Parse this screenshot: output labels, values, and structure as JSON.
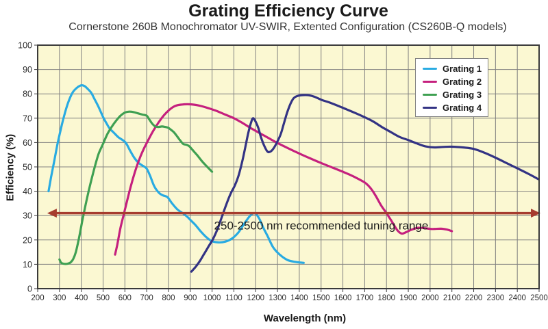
{
  "header": {
    "title": "Grating Efficiency Curve",
    "subtitle": "Cornerstone 260B Monochromator UV-SWIR, Extented Configuration (CS260B-Q models)"
  },
  "chart_data": {
    "type": "line",
    "title": "Grating Efficiency Curve",
    "subtitle": "Cornerstone 260B Monochromator UV-SWIR, Extented Configuration (CS260B-Q models)",
    "xlabel": "Wavelength (nm)",
    "ylabel": "Efficiency (%)",
    "xlim": [
      200,
      2500
    ],
    "ylim": [
      0,
      100
    ],
    "x_ticks": [
      200,
      300,
      400,
      500,
      600,
      700,
      800,
      900,
      1000,
      1100,
      1200,
      1300,
      1400,
      1500,
      1600,
      1700,
      1800,
      1900,
      2000,
      2100,
      2200,
      2300,
      2400,
      2500
    ],
    "y_ticks": [
      0,
      10,
      20,
      30,
      40,
      50,
      60,
      70,
      80,
      90,
      100
    ],
    "grid": true,
    "legend_position": "top-right",
    "colors": {
      "plot_bg": "#FBF8D2",
      "grid": "#808080",
      "border": "#3A3A3A",
      "tick_text": "#2B2B2B",
      "annotation_arrow": "#A63C2E",
      "annotation_text": "#1A1A1A"
    },
    "series": [
      {
        "name": "Grating 1",
        "color": "#29ABE2",
        "points": [
          [
            250,
            40
          ],
          [
            262,
            46
          ],
          [
            275,
            52
          ],
          [
            290,
            59
          ],
          [
            305,
            65
          ],
          [
            320,
            70.5
          ],
          [
            340,
            76.5
          ],
          [
            360,
            80.5
          ],
          [
            380,
            82.5
          ],
          [
            400,
            83.5
          ],
          [
            415,
            83.2
          ],
          [
            430,
            82
          ],
          [
            445,
            80.5
          ],
          [
            460,
            78
          ],
          [
            480,
            74.5
          ],
          [
            500,
            70.5
          ],
          [
            515,
            68
          ],
          [
            530,
            65.8
          ],
          [
            550,
            64
          ],
          [
            570,
            62.2
          ],
          [
            590,
            61
          ],
          [
            605,
            59.8
          ],
          [
            625,
            56.5
          ],
          [
            645,
            53.5
          ],
          [
            665,
            51.5
          ],
          [
            685,
            50.3
          ],
          [
            700,
            49.3
          ],
          [
            715,
            46.5
          ],
          [
            735,
            42
          ],
          [
            757,
            39.3
          ],
          [
            775,
            38.3
          ],
          [
            795,
            37.6
          ],
          [
            815,
            35.2
          ],
          [
            840,
            32.6
          ],
          [
            865,
            31
          ],
          [
            885,
            29.6
          ],
          [
            905,
            27.8
          ],
          [
            925,
            26
          ],
          [
            950,
            23.3
          ],
          [
            975,
            21
          ],
          [
            1000,
            19.5
          ],
          [
            1030,
            19
          ],
          [
            1060,
            19.3
          ],
          [
            1090,
            20.5
          ],
          [
            1120,
            23
          ],
          [
            1150,
            27
          ],
          [
            1175,
            30
          ],
          [
            1195,
            31
          ],
          [
            1215,
            29
          ],
          [
            1235,
            25
          ],
          [
            1255,
            21.5
          ],
          [
            1280,
            17
          ],
          [
            1310,
            14
          ],
          [
            1345,
            11.8
          ],
          [
            1380,
            11
          ],
          [
            1420,
            10.6
          ]
        ]
      },
      {
        "name": "Grating 2",
        "color": "#C5207E",
        "points": [
          [
            555,
            14
          ],
          [
            565,
            18
          ],
          [
            580,
            25
          ],
          [
            595,
            30.5
          ],
          [
            610,
            36
          ],
          [
            630,
            43
          ],
          [
            650,
            49
          ],
          [
            670,
            54
          ],
          [
            690,
            58
          ],
          [
            710,
            61.5
          ],
          [
            730,
            64.8
          ],
          [
            755,
            68.3
          ],
          [
            780,
            71.3
          ],
          [
            805,
            73.5
          ],
          [
            830,
            75
          ],
          [
            860,
            75.6
          ],
          [
            900,
            75.7
          ],
          [
            940,
            75.2
          ],
          [
            980,
            74.2
          ],
          [
            1020,
            73
          ],
          [
            1060,
            71.5
          ],
          [
            1100,
            70
          ],
          [
            1140,
            68
          ],
          [
            1180,
            65.8
          ],
          [
            1220,
            63.8
          ],
          [
            1260,
            61.8
          ],
          [
            1300,
            59.8
          ],
          [
            1350,
            57.6
          ],
          [
            1400,
            55.5
          ],
          [
            1450,
            53.5
          ],
          [
            1500,
            51.6
          ],
          [
            1550,
            49.8
          ],
          [
            1600,
            48
          ],
          [
            1650,
            46
          ],
          [
            1700,
            43.6
          ],
          [
            1725,
            41.5
          ],
          [
            1750,
            38.2
          ],
          [
            1775,
            34.2
          ],
          [
            1800,
            31
          ],
          [
            1825,
            27.5
          ],
          [
            1850,
            24
          ],
          [
            1870,
            22.6
          ],
          [
            1890,
            23.2
          ],
          [
            1915,
            24.2
          ],
          [
            1945,
            25
          ],
          [
            1975,
            24.8
          ],
          [
            2010,
            24.5
          ],
          [
            2050,
            24.6
          ],
          [
            2080,
            24.2
          ],
          [
            2100,
            23.6
          ]
        ]
      },
      {
        "name": "Grating 3",
        "color": "#3FA052",
        "points": [
          [
            300,
            12
          ],
          [
            308,
            10.6
          ],
          [
            320,
            10.2
          ],
          [
            335,
            10.2
          ],
          [
            350,
            10.7
          ],
          [
            363,
            12.2
          ],
          [
            375,
            15
          ],
          [
            390,
            21
          ],
          [
            405,
            28
          ],
          [
            420,
            34.5
          ],
          [
            435,
            40.5
          ],
          [
            450,
            46
          ],
          [
            465,
            51
          ],
          [
            480,
            55.5
          ],
          [
            500,
            59.5
          ],
          [
            520,
            63.5
          ],
          [
            540,
            66.5
          ],
          [
            560,
            69
          ],
          [
            580,
            71
          ],
          [
            600,
            72.3
          ],
          [
            620,
            72.7
          ],
          [
            640,
            72.5
          ],
          [
            660,
            72
          ],
          [
            680,
            71.5
          ],
          [
            700,
            71
          ],
          [
            712,
            69.5
          ],
          [
            725,
            67.8
          ],
          [
            740,
            66.6
          ],
          [
            755,
            66.4
          ],
          [
            770,
            66.6
          ],
          [
            785,
            66.4
          ],
          [
            800,
            66
          ],
          [
            812,
            65.2
          ],
          [
            825,
            64.2
          ],
          [
            840,
            62.5
          ],
          [
            855,
            60.7
          ],
          [
            868,
            59.4
          ],
          [
            882,
            59.1
          ],
          [
            895,
            58.5
          ],
          [
            910,
            57
          ],
          [
            930,
            55
          ],
          [
            955,
            52.2
          ],
          [
            978,
            50
          ],
          [
            1000,
            48
          ]
        ]
      },
      {
        "name": "Grating 4",
        "color": "#333384",
        "points": [
          [
            905,
            7
          ],
          [
            925,
            9
          ],
          [
            945,
            11.5
          ],
          [
            965,
            14.5
          ],
          [
            985,
            17.5
          ],
          [
            1005,
            20.5
          ],
          [
            1025,
            24.5
          ],
          [
            1045,
            29.5
          ],
          [
            1065,
            34.5
          ],
          [
            1085,
            39
          ],
          [
            1105,
            42.5
          ],
          [
            1120,
            46
          ],
          [
            1135,
            51
          ],
          [
            1150,
            57
          ],
          [
            1165,
            63.5
          ],
          [
            1178,
            68
          ],
          [
            1188,
            70
          ],
          [
            1200,
            68.5
          ],
          [
            1212,
            66
          ],
          [
            1225,
            62
          ],
          [
            1240,
            58.5
          ],
          [
            1255,
            56.2
          ],
          [
            1270,
            56.4
          ],
          [
            1285,
            58
          ],
          [
            1300,
            60.5
          ],
          [
            1315,
            63.5
          ],
          [
            1330,
            68
          ],
          [
            1345,
            72.5
          ],
          [
            1360,
            76
          ],
          [
            1375,
            78.3
          ],
          [
            1395,
            79.2
          ],
          [
            1420,
            79.5
          ],
          [
            1445,
            79.4
          ],
          [
            1470,
            78.8
          ],
          [
            1500,
            77.6
          ],
          [
            1540,
            76.4
          ],
          [
            1580,
            75
          ],
          [
            1620,
            73.5
          ],
          [
            1660,
            72
          ],
          [
            1700,
            70.4
          ],
          [
            1740,
            68.6
          ],
          [
            1780,
            66.3
          ],
          [
            1820,
            64.3
          ],
          [
            1860,
            62.3
          ],
          [
            1900,
            61
          ],
          [
            1940,
            59.6
          ],
          [
            1980,
            58.4
          ],
          [
            2020,
            58
          ],
          [
            2060,
            58.2
          ],
          [
            2100,
            58.3
          ],
          [
            2150,
            58
          ],
          [
            2200,
            57.4
          ],
          [
            2250,
            55.8
          ],
          [
            2300,
            53.8
          ],
          [
            2350,
            51.6
          ],
          [
            2400,
            49.4
          ],
          [
            2450,
            47.2
          ],
          [
            2500,
            44.8
          ]
        ]
      }
    ],
    "annotation": {
      "label": "250-2500 nm recommended tuning range",
      "x_start": 250,
      "x_end": 2500,
      "y": 31
    }
  }
}
